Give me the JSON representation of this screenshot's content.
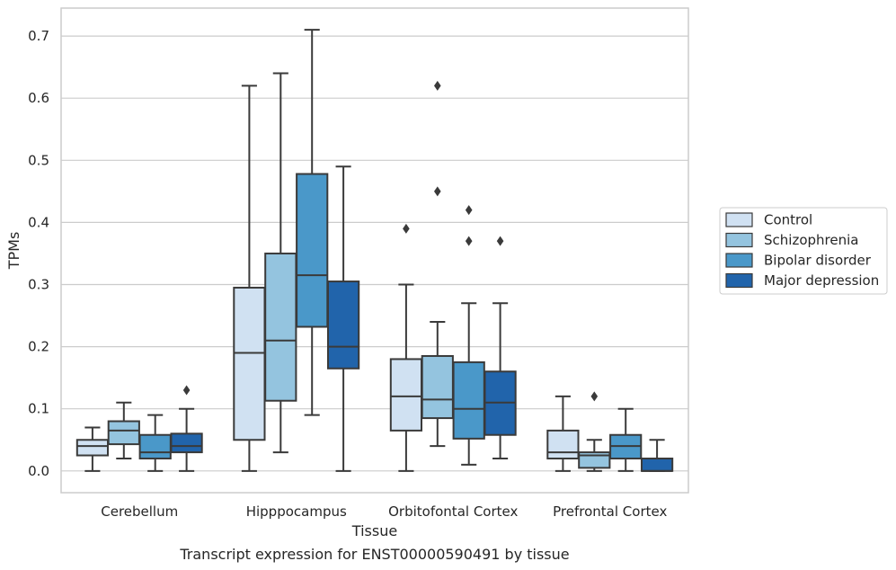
{
  "caption": "Transcript expression for ENST00000590491 by tissue",
  "chart_data": {
    "type": "box",
    "xlabel": "Tissue",
    "ylabel": "TPMs",
    "ylim": [
      -0.035,
      0.745
    ],
    "yticks": [
      0.0,
      0.1,
      0.2,
      0.3,
      0.4,
      0.5,
      0.6,
      0.7
    ],
    "ytick_labels": [
      "0.0",
      "0.1",
      "0.2",
      "0.3",
      "0.4",
      "0.5",
      "0.6",
      "0.7"
    ],
    "grid": "horizontal",
    "legend_position": "right",
    "categories": [
      "Cerebellum",
      "Hipppocampus",
      "Orbitofontal Cortex",
      "Prefrontal Cortex"
    ],
    "series": [
      {
        "name": "Control",
        "color": "#d0e1f2",
        "boxes": [
          {
            "whislo": 0.0,
            "q1": 0.025,
            "med": 0.04,
            "q3": 0.05,
            "whishi": 0.07,
            "fliers": []
          },
          {
            "whislo": 0.0,
            "q1": 0.05,
            "med": 0.19,
            "q3": 0.295,
            "whishi": 0.62,
            "fliers": []
          },
          {
            "whislo": 0.0,
            "q1": 0.065,
            "med": 0.12,
            "q3": 0.18,
            "whishi": 0.3,
            "fliers": [
              0.39
            ]
          },
          {
            "whislo": 0.0,
            "q1": 0.02,
            "med": 0.03,
            "q3": 0.065,
            "whishi": 0.12,
            "fliers": []
          }
        ]
      },
      {
        "name": "Schizophrenia",
        "color": "#94c4df",
        "boxes": [
          {
            "whislo": 0.02,
            "q1": 0.043,
            "med": 0.065,
            "q3": 0.08,
            "whishi": 0.11,
            "fliers": []
          },
          {
            "whislo": 0.03,
            "q1": 0.113,
            "med": 0.21,
            "q3": 0.35,
            "whishi": 0.64,
            "fliers": []
          },
          {
            "whislo": 0.04,
            "q1": 0.085,
            "med": 0.115,
            "q3": 0.185,
            "whishi": 0.24,
            "fliers": [
              0.45,
              0.62
            ]
          },
          {
            "whislo": 0.0,
            "q1": 0.005,
            "med": 0.025,
            "q3": 0.03,
            "whishi": 0.05,
            "fliers": [
              0.12
            ]
          }
        ]
      },
      {
        "name": "Bipolar disorder",
        "color": "#4a98c9",
        "boxes": [
          {
            "whislo": 0.0,
            "q1": 0.02,
            "med": 0.03,
            "q3": 0.058,
            "whishi": 0.09,
            "fliers": []
          },
          {
            "whislo": 0.09,
            "q1": 0.232,
            "med": 0.315,
            "q3": 0.478,
            "whishi": 0.71,
            "fliers": []
          },
          {
            "whislo": 0.01,
            "q1": 0.052,
            "med": 0.1,
            "q3": 0.175,
            "whishi": 0.27,
            "fliers": [
              0.37,
              0.42
            ]
          },
          {
            "whislo": 0.0,
            "q1": 0.02,
            "med": 0.04,
            "q3": 0.058,
            "whishi": 0.1,
            "fliers": []
          }
        ]
      },
      {
        "name": "Major depression",
        "color": "#2164ab",
        "boxes": [
          {
            "whislo": 0.0,
            "q1": 0.03,
            "med": 0.04,
            "q3": 0.06,
            "whishi": 0.1,
            "fliers": [
              0.13
            ]
          },
          {
            "whislo": 0.0,
            "q1": 0.165,
            "med": 0.2,
            "q3": 0.305,
            "whishi": 0.49,
            "fliers": []
          },
          {
            "whislo": 0.02,
            "q1": 0.058,
            "med": 0.11,
            "q3": 0.16,
            "whishi": 0.27,
            "fliers": [
              0.37
            ]
          },
          {
            "whislo": 0.0,
            "q1": 0.0,
            "med": 0.0,
            "q3": 0.02,
            "whishi": 0.05,
            "fliers": []
          }
        ]
      }
    ]
  }
}
